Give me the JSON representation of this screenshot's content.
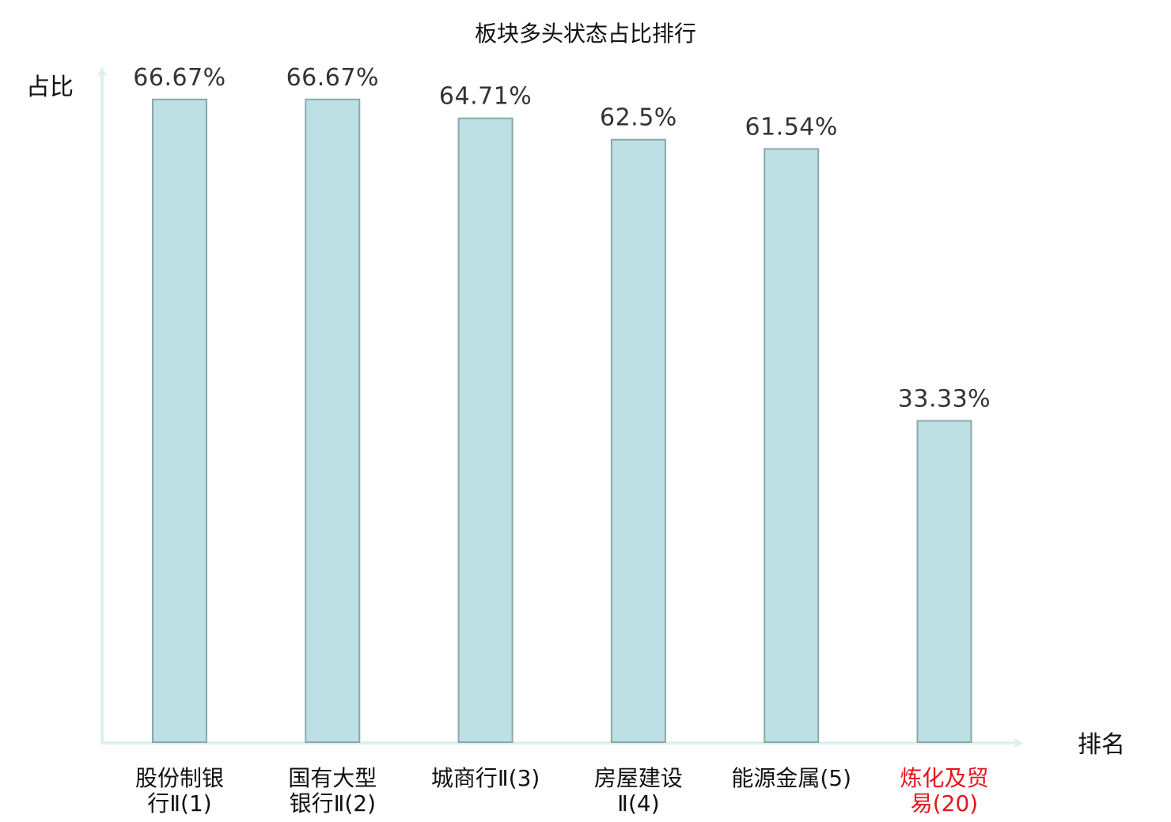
{
  "chart_data": {
    "type": "bar",
    "title": "板块多头状态占比排行",
    "ylabel": "占比",
    "xlabel": "排名",
    "ylim": [
      0,
      71
    ],
    "grid": false,
    "categories": [
      [
        "股份制银",
        "行Ⅱ(1)"
      ],
      [
        "国有大型",
        "银行Ⅱ(2)"
      ],
      [
        "城商行Ⅱ(3)"
      ],
      [
        "房屋建设",
        "Ⅱ(4)"
      ],
      [
        "能源金属(5)"
      ],
      [
        "炼化及贸",
        "易(20)"
      ]
    ],
    "highlight_index": 5,
    "values": [
      66.67,
      66.67,
      64.71,
      62.5,
      61.54,
      33.33
    ],
    "value_labels": [
      "66.67%",
      "66.67%",
      "64.71%",
      "62.5%",
      "61.54%",
      "33.33%"
    ]
  },
  "colors": {
    "bar_fill": "#bce0e3",
    "bar_stroke": "#8aa8ab",
    "axis": "#dcf0ee",
    "label_text": "#111111",
    "value_text": "#333333",
    "highlight_text": "#e8131b"
  }
}
